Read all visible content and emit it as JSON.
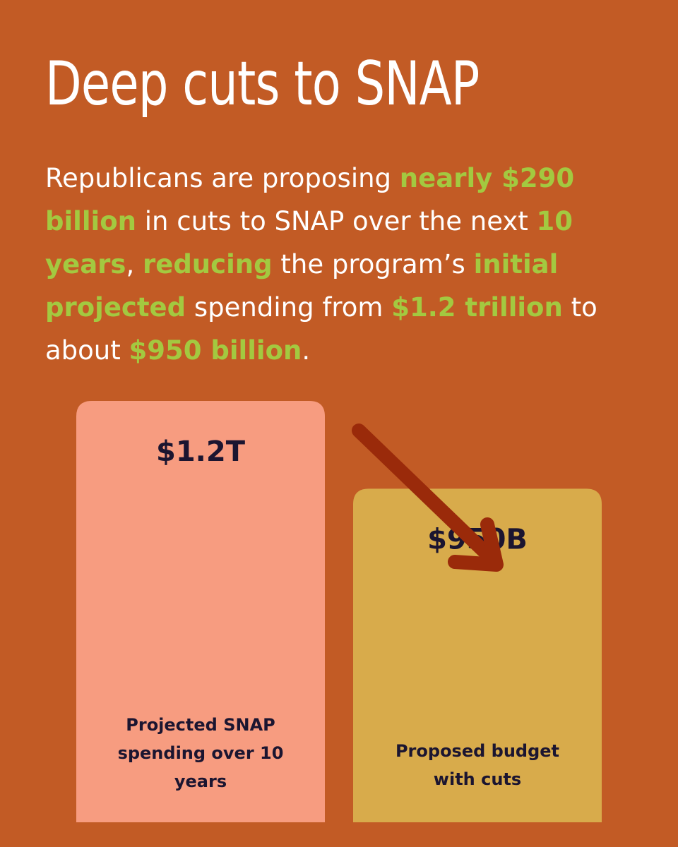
{
  "title": "Deep cuts to SNAP",
  "intro": [
    {
      "text": "Republicans are proposing ",
      "highlight": false
    },
    {
      "text": "nearly $290 billion",
      "highlight": true
    },
    {
      "text": " in cuts to SNAP over the next ",
      "highlight": false
    },
    {
      "text": "10 years",
      "highlight": true
    },
    {
      "text": ", ",
      "highlight": false
    },
    {
      "text": "reducing",
      "highlight": true
    },
    {
      "text": " the program’s ",
      "highlight": false
    },
    {
      "text": "initial projected",
      "highlight": true
    },
    {
      "text": " spending from ",
      "highlight": false
    },
    {
      "text": "$1.2 trillion",
      "highlight": true
    },
    {
      "text": " to about ",
      "highlight": false
    },
    {
      "text": "$950 billion",
      "highlight": true
    },
    {
      "text": ".",
      "highlight": false
    }
  ],
  "colors": {
    "background": "#c25b25",
    "highlight": "#a3c940",
    "bar_projected": "#f79c80",
    "bar_proposed": "#d8ab4b",
    "arrow": "#9a2a0a",
    "label_text": "#1b1530"
  },
  "chart_data": {
    "type": "bar",
    "categories": [
      "Projected SNAP spending over 10 years",
      "Proposed budget with cuts"
    ],
    "values": [
      1200,
      950
    ],
    "value_labels": [
      "$1.2T",
      "$950B"
    ],
    "category_labels": [
      [
        "Projected SNAP",
        "spending over 10",
        "years"
      ],
      [
        "Proposed budget",
        "with cuts"
      ]
    ],
    "unit": "billions of dollars",
    "arrow": "down-right from first bar to second bar"
  }
}
